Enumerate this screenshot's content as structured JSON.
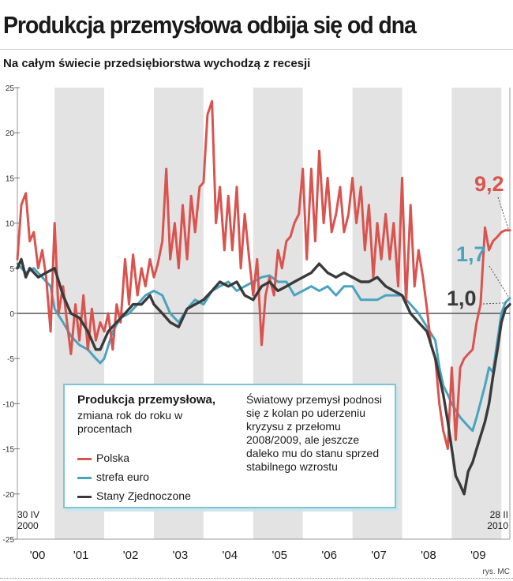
{
  "header": {
    "title": "Produkcja przemysłowa odbija się od dna",
    "subtitle": "Na całym świecie przedsiębiorstwa wychodzą z recesji"
  },
  "legend": {
    "title": "Produkcja przemysłowa,",
    "subtitle": "zmiana rok do roku w procentach",
    "note": "Światowy przemysł podnosi się z kolan po uderzeniu kryzysu z przełomu 2008/2009, ale jeszcze daleko mu do stanu sprzed stabilnego wzrostu"
  },
  "credit": "rys. MC",
  "colors": {
    "polska": "#d9534f",
    "euro": "#4aa3bf",
    "usa": "#3a3a3a",
    "band": "#e3e3e3"
  },
  "chart_data": {
    "type": "line",
    "ylim": [
      -25,
      25
    ],
    "yticks": [
      "25",
      "20",
      "15",
      "10",
      "5",
      "0",
      "-5",
      "-10",
      "-15",
      "-20",
      "-25"
    ],
    "x_range": [
      2000.25,
      2010.17
    ],
    "xtick_labels": [
      "'00",
      "'01",
      "'02",
      "'03",
      "'04",
      "'05",
      "'06",
      "'07",
      "'08",
      "'09"
    ],
    "start_label": [
      "30 IV",
      "2000"
    ],
    "end_label": [
      "28 II",
      "2010"
    ],
    "series": [
      {
        "name": "Polska",
        "end_label": "9,2",
        "points": [
          [
            2000.25,
            6
          ],
          [
            2000.33,
            12
          ],
          [
            2000.42,
            13.3
          ],
          [
            2000.5,
            8
          ],
          [
            2000.58,
            9
          ],
          [
            2000.67,
            5
          ],
          [
            2000.75,
            7
          ],
          [
            2000.83,
            4
          ],
          [
            2000.92,
            -2
          ],
          [
            2001.0,
            10
          ],
          [
            2001.08,
            0
          ],
          [
            2001.17,
            3
          ],
          [
            2001.25,
            -1
          ],
          [
            2001.33,
            -4.5
          ],
          [
            2001.42,
            1
          ],
          [
            2001.5,
            -3
          ],
          [
            2001.58,
            2
          ],
          [
            2001.67,
            -4
          ],
          [
            2001.75,
            0.5
          ],
          [
            2001.83,
            -3
          ],
          [
            2001.92,
            -1
          ],
          [
            2002.0,
            -2
          ],
          [
            2002.08,
            0
          ],
          [
            2002.17,
            -4
          ],
          [
            2002.25,
            1
          ],
          [
            2002.33,
            -1
          ],
          [
            2002.42,
            6
          ],
          [
            2002.5,
            1
          ],
          [
            2002.58,
            6.5
          ],
          [
            2002.67,
            2
          ],
          [
            2002.75,
            5
          ],
          [
            2002.83,
            3
          ],
          [
            2002.92,
            6
          ],
          [
            2003.0,
            4
          ],
          [
            2003.08,
            5.5
          ],
          [
            2003.17,
            8
          ],
          [
            2003.25,
            16
          ],
          [
            2003.33,
            6
          ],
          [
            2003.42,
            10
          ],
          [
            2003.5,
            5
          ],
          [
            2003.58,
            12
          ],
          [
            2003.67,
            6
          ],
          [
            2003.75,
            13
          ],
          [
            2003.83,
            9
          ],
          [
            2003.92,
            14
          ],
          [
            2004.0,
            14.5
          ],
          [
            2004.08,
            22
          ],
          [
            2004.17,
            23.5
          ],
          [
            2004.25,
            10
          ],
          [
            2004.33,
            14
          ],
          [
            2004.42,
            7
          ],
          [
            2004.5,
            13
          ],
          [
            2004.58,
            7
          ],
          [
            2004.67,
            14
          ],
          [
            2004.75,
            5
          ],
          [
            2004.83,
            11
          ],
          [
            2004.92,
            6
          ],
          [
            2005.0,
            2
          ],
          [
            2005.08,
            6
          ],
          [
            2005.17,
            -3.5
          ],
          [
            2005.25,
            2
          ],
          [
            2005.33,
            4
          ],
          [
            2005.42,
            2
          ],
          [
            2005.5,
            7
          ],
          [
            2005.58,
            5
          ],
          [
            2005.67,
            8
          ],
          [
            2005.75,
            8.5
          ],
          [
            2005.83,
            10
          ],
          [
            2005.92,
            11
          ],
          [
            2006.0,
            16
          ],
          [
            2006.08,
            6
          ],
          [
            2006.17,
            16
          ],
          [
            2006.25,
            8
          ],
          [
            2006.33,
            18
          ],
          [
            2006.42,
            10
          ],
          [
            2006.5,
            15
          ],
          [
            2006.58,
            9
          ],
          [
            2006.67,
            11
          ],
          [
            2006.75,
            14
          ],
          [
            2006.83,
            9
          ],
          [
            2006.92,
            11
          ],
          [
            2007.0,
            15
          ],
          [
            2007.08,
            10
          ],
          [
            2007.17,
            14
          ],
          [
            2007.25,
            7
          ],
          [
            2007.33,
            12
          ],
          [
            2007.42,
            4
          ],
          [
            2007.5,
            10
          ],
          [
            2007.58,
            6
          ],
          [
            2007.67,
            11
          ],
          [
            2007.75,
            6
          ],
          [
            2007.83,
            10
          ],
          [
            2007.92,
            3
          ],
          [
            2008.0,
            15
          ],
          [
            2008.08,
            1
          ],
          [
            2008.17,
            12
          ],
          [
            2008.25,
            3
          ],
          [
            2008.33,
            7
          ],
          [
            2008.42,
            4
          ],
          [
            2008.5,
            0.5
          ],
          [
            2008.58,
            -3.5
          ],
          [
            2008.67,
            -5
          ],
          [
            2008.75,
            -10
          ],
          [
            2008.83,
            -13
          ],
          [
            2008.92,
            -15
          ],
          [
            2009.0,
            -6
          ],
          [
            2009.08,
            -14
          ],
          [
            2009.17,
            -6
          ],
          [
            2009.25,
            -5
          ],
          [
            2009.33,
            -4.5
          ],
          [
            2009.42,
            -4
          ],
          [
            2009.5,
            -1
          ],
          [
            2009.58,
            1
          ],
          [
            2009.67,
            9.5
          ],
          [
            2009.75,
            7
          ],
          [
            2009.83,
            8
          ],
          [
            2009.92,
            8.5
          ],
          [
            2010.0,
            9
          ],
          [
            2010.08,
            9.2
          ],
          [
            2010.17,
            9.2
          ]
        ]
      },
      {
        "name": "strefa euro",
        "end_label": "1,7",
        "points": [
          [
            2000.25,
            5.5
          ],
          [
            2000.42,
            4.5
          ],
          [
            2000.58,
            5
          ],
          [
            2000.75,
            4
          ],
          [
            2000.92,
            3
          ],
          [
            2001.0,
            0.5
          ],
          [
            2001.17,
            -1
          ],
          [
            2001.33,
            -2.5
          ],
          [
            2001.5,
            -3.5
          ],
          [
            2001.67,
            -4
          ],
          [
            2001.83,
            -5
          ],
          [
            2001.92,
            -5.5
          ],
          [
            2002.0,
            -5
          ],
          [
            2002.17,
            -2
          ],
          [
            2002.33,
            -0.5
          ],
          [
            2002.5,
            0
          ],
          [
            2002.67,
            1
          ],
          [
            2002.83,
            2
          ],
          [
            2003.0,
            2.5
          ],
          [
            2003.17,
            2
          ],
          [
            2003.33,
            0
          ],
          [
            2003.5,
            -1
          ],
          [
            2003.67,
            0.5
          ],
          [
            2003.83,
            1.5
          ],
          [
            2004.0,
            1
          ],
          [
            2004.17,
            2.5
          ],
          [
            2004.33,
            3
          ],
          [
            2004.5,
            3.5
          ],
          [
            2004.67,
            2.5
          ],
          [
            2004.83,
            3
          ],
          [
            2005.0,
            3.5
          ],
          [
            2005.17,
            4
          ],
          [
            2005.33,
            4.2
          ],
          [
            2005.5,
            3.5
          ],
          [
            2005.67,
            3.5
          ],
          [
            2005.83,
            2
          ],
          [
            2006.0,
            2.5
          ],
          [
            2006.17,
            3
          ],
          [
            2006.33,
            2.5
          ],
          [
            2006.5,
            3
          ],
          [
            2006.67,
            2
          ],
          [
            2006.83,
            3
          ],
          [
            2007.0,
            3
          ],
          [
            2007.17,
            1.5
          ],
          [
            2007.33,
            1.5
          ],
          [
            2007.5,
            1.5
          ],
          [
            2007.67,
            2
          ],
          [
            2007.83,
            2
          ],
          [
            2008.0,
            2
          ],
          [
            2008.17,
            1
          ],
          [
            2008.33,
            0
          ],
          [
            2008.5,
            -1.5
          ],
          [
            2008.67,
            -3
          ],
          [
            2008.75,
            -6
          ],
          [
            2008.83,
            -8
          ],
          [
            2008.92,
            -9
          ],
          [
            2009.0,
            -10
          ],
          [
            2009.17,
            -11.5
          ],
          [
            2009.33,
            -12.5
          ],
          [
            2009.42,
            -13
          ],
          [
            2009.5,
            -11.5
          ],
          [
            2009.67,
            -8
          ],
          [
            2009.75,
            -6
          ],
          [
            2009.83,
            -6.5
          ],
          [
            2009.92,
            -3
          ],
          [
            2010.0,
            0
          ],
          [
            2010.08,
            1.2
          ],
          [
            2010.17,
            1.7
          ]
        ]
      },
      {
        "name": "Stany Zjednoczone",
        "end_label": "1,0",
        "points": [
          [
            2000.25,
            5
          ],
          [
            2000.33,
            6
          ],
          [
            2000.42,
            4
          ],
          [
            2000.5,
            5
          ],
          [
            2000.67,
            4
          ],
          [
            2000.83,
            4.5
          ],
          [
            2001.0,
            5
          ],
          [
            2001.17,
            2
          ],
          [
            2001.33,
            0
          ],
          [
            2001.5,
            -0.5
          ],
          [
            2001.67,
            -2
          ],
          [
            2001.83,
            -4
          ],
          [
            2001.92,
            -4
          ],
          [
            2002.08,
            -2
          ],
          [
            2002.25,
            -1
          ],
          [
            2002.42,
            0
          ],
          [
            2002.58,
            1
          ],
          [
            2002.75,
            1
          ],
          [
            2002.92,
            2
          ],
          [
            2003.0,
            1
          ],
          [
            2003.17,
            0
          ],
          [
            2003.33,
            -1
          ],
          [
            2003.5,
            -1.5
          ],
          [
            2003.67,
            0.5
          ],
          [
            2003.83,
            1
          ],
          [
            2004.0,
            1.5
          ],
          [
            2004.17,
            2.5
          ],
          [
            2004.33,
            3.5
          ],
          [
            2004.5,
            3
          ],
          [
            2004.67,
            3.5
          ],
          [
            2004.83,
            2
          ],
          [
            2005.0,
            1.5
          ],
          [
            2005.17,
            3
          ],
          [
            2005.33,
            3.5
          ],
          [
            2005.5,
            2.5
          ],
          [
            2005.67,
            3
          ],
          [
            2005.83,
            3.5
          ],
          [
            2006.0,
            4
          ],
          [
            2006.17,
            4.5
          ],
          [
            2006.33,
            5.5
          ],
          [
            2006.5,
            4.5
          ],
          [
            2006.67,
            4
          ],
          [
            2006.83,
            4.5
          ],
          [
            2007.0,
            4
          ],
          [
            2007.17,
            3.5
          ],
          [
            2007.33,
            3.5
          ],
          [
            2007.5,
            4
          ],
          [
            2007.67,
            3
          ],
          [
            2007.83,
            2.5
          ],
          [
            2008.0,
            2
          ],
          [
            2008.17,
            0
          ],
          [
            2008.33,
            -1
          ],
          [
            2008.5,
            -2
          ],
          [
            2008.67,
            -5
          ],
          [
            2008.83,
            -9
          ],
          [
            2008.92,
            -12
          ],
          [
            2009.0,
            -15
          ],
          [
            2009.08,
            -18
          ],
          [
            2009.17,
            -19
          ],
          [
            2009.25,
            -20
          ],
          [
            2009.33,
            -17.5
          ],
          [
            2009.42,
            -16.5
          ],
          [
            2009.5,
            -15
          ],
          [
            2009.67,
            -12
          ],
          [
            2009.75,
            -10
          ],
          [
            2009.83,
            -7
          ],
          [
            2009.92,
            -4
          ],
          [
            2010.0,
            -1
          ],
          [
            2010.08,
            0.5
          ],
          [
            2010.17,
            1.0
          ]
        ]
      }
    ]
  }
}
